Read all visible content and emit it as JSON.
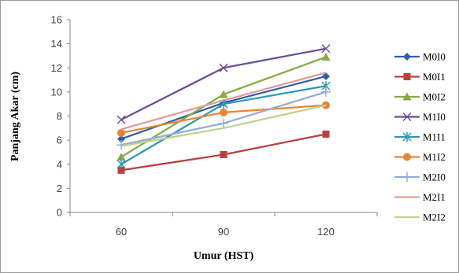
{
  "chart_data": {
    "type": "line",
    "title": "",
    "xlabel": "Umur (HST)",
    "ylabel": "Panjang Akar (cm)",
    "categories": [
      "60",
      "90",
      "120"
    ],
    "ylim": [
      0,
      16
    ],
    "yticks": [
      "0",
      "2",
      "4",
      "6",
      "8",
      "10",
      "12",
      "14",
      "16"
    ],
    "grid": false,
    "legend_position": "right",
    "series": [
      {
        "name": "M0I0",
        "values": [
          6.1,
          9.1,
          11.3
        ],
        "color": "#2E5FA8",
        "marker": "diamond"
      },
      {
        "name": "M0I1",
        "values": [
          3.5,
          4.8,
          6.5
        ],
        "color": "#B9403E",
        "marker": "square"
      },
      {
        "name": "M0I2",
        "values": [
          4.6,
          9.8,
          12.9
        ],
        "color": "#86A943",
        "marker": "triangle"
      },
      {
        "name": "M1I0",
        "values": [
          7.7,
          12.0,
          13.6
        ],
        "color": "#6B4E98",
        "marker": "x"
      },
      {
        "name": "M1I1",
        "values": [
          4.0,
          9.0,
          10.5
        ],
        "color": "#3098B5",
        "marker": "star"
      },
      {
        "name": "M1I2",
        "values": [
          6.6,
          8.3,
          8.9
        ],
        "color": "#E8862F",
        "marker": "circle"
      },
      {
        "name": "M2I0",
        "values": [
          5.6,
          7.4,
          10.0
        ],
        "color": "#94ACD6",
        "marker": "plus"
      },
      {
        "name": "M2I1",
        "values": [
          6.9,
          9.3,
          11.6
        ],
        "color": "#E19B99",
        "marker": "none"
      },
      {
        "name": "M2I2",
        "values": [
          5.5,
          7.0,
          8.9
        ],
        "color": "#BAD38E",
        "marker": "none"
      }
    ]
  }
}
